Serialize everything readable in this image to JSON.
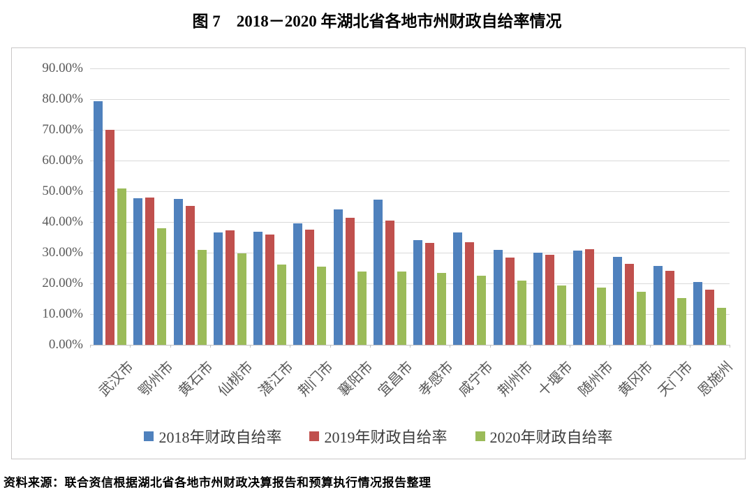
{
  "page": {
    "title": "图 7　2018－2020 年湖北省各地市州财政自给率情况",
    "source_note": "资料来源：联合资信根据湖北省各地市州财政决算报告和预算执行情况报告整理"
  },
  "colors": {
    "grid": "#d9d9d9",
    "axis_line": "#c2c0c0",
    "chart_border": "#c9c7c7",
    "tick_label": "#595959",
    "series_2018": "#4F81BD",
    "series_2019": "#C0504D",
    "series_2020": "#9BBB59"
  },
  "chart_data": {
    "type": "bar",
    "title": "图 7　2018－2020 年湖北省各地市州财政自给率情况",
    "value_unit": "%",
    "categories": [
      "武汉市",
      "鄂州市",
      "黄石市",
      "仙桃市",
      "潜江市",
      "荆门市",
      "襄阳市",
      "宜昌市",
      "孝感市",
      "咸宁市",
      "荆州市",
      "十堰市",
      "随州市",
      "黄冈市",
      "天门市",
      "恩施州"
    ],
    "series": [
      {
        "name": "2018年财政自给率",
        "year": "2018",
        "color": "#4F81BD",
        "values": [
          79.4,
          47.8,
          47.4,
          36.7,
          36.9,
          39.6,
          44.1,
          47.2,
          34.0,
          36.7,
          31.0,
          30.1,
          30.6,
          28.6,
          25.7,
          20.4
        ]
      },
      {
        "name": "2019年财政自给率",
        "year": "2019",
        "color": "#C0504D",
        "values": [
          70.0,
          48.0,
          45.2,
          37.3,
          35.8,
          37.5,
          41.3,
          40.5,
          33.1,
          33.5,
          28.4,
          29.3,
          31.1,
          26.4,
          24.1,
          18.0
        ]
      },
      {
        "name": "2020年财政自给率",
        "year": "2020",
        "color": "#9BBB59",
        "values": [
          51.0,
          38.0,
          30.8,
          29.8,
          26.2,
          25.4,
          23.8,
          23.8,
          23.3,
          22.5,
          20.8,
          19.3,
          18.7,
          17.2,
          15.2,
          12.1
        ]
      }
    ],
    "xlabel": "",
    "ylabel": "",
    "ylim": [
      0,
      90
    ],
    "ytick_step": 10,
    "ytick_labels": [
      "0.00%",
      "10.00%",
      "20.00%",
      "30.00%",
      "40.00%",
      "50.00%",
      "60.00%",
      "70.00%",
      "80.00%",
      "90.00%"
    ],
    "grid": true,
    "legend_position": "bottom",
    "x_label_rotation_deg": 45
  }
}
